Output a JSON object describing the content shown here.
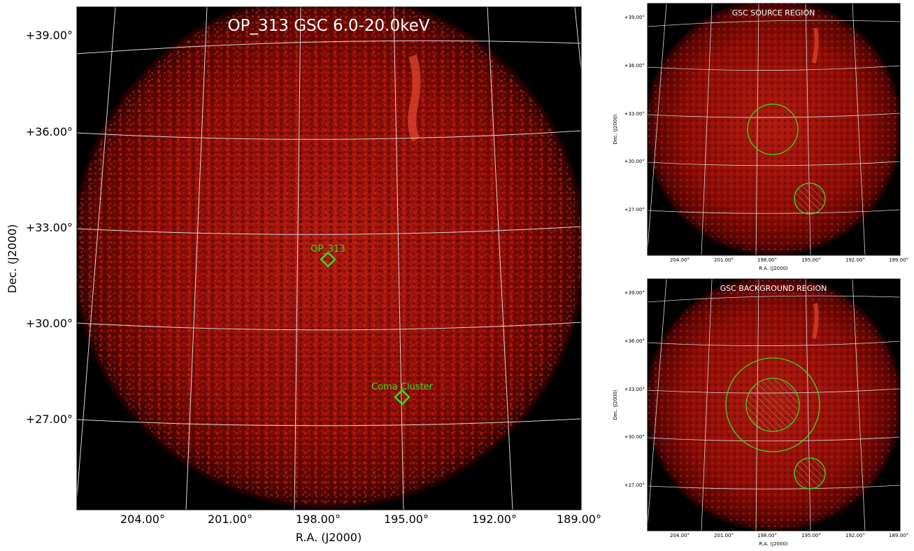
{
  "main_map": {
    "title": "OP_313 GSC 6.0-20.0keV",
    "xlabel": "R.A. (J2000)",
    "ylabel": "Dec. (J2000)",
    "ra_ticks": [
      "204.00°",
      "201.00°",
      "198.00°",
      "195.00°",
      "192.00°",
      "189.00°"
    ],
    "dec_ticks": [
      "+39.00°",
      "+36.00°",
      "+33.00°",
      "+30.00°",
      "+27.00°"
    ],
    "sources": [
      {
        "name": "OP_313"
      },
      {
        "name": "Coma Cluster"
      }
    ]
  },
  "source_panel": {
    "title": "GSC SOURCE REGION",
    "xlabel": "R.A. (J2000)",
    "ylabel": "Dec. (J2000)",
    "ra_ticks": [
      "204.00°",
      "201.00°",
      "198.00°",
      "195.00°",
      "192.00°",
      "189.00°"
    ],
    "dec_ticks": [
      "+39.00°",
      "+36.00°",
      "+33.00°",
      "+30.00°",
      "+27.00°"
    ]
  },
  "background_panel": {
    "title": "GSC BACKGROUND REGION",
    "xlabel": "R.A. (J2000)",
    "ylabel": "Dec. (J2000)",
    "ra_ticks": [
      "204.00°",
      "201.00°",
      "198.00°",
      "195.00°",
      "192.00°",
      "189.00°"
    ],
    "dec_ticks": [
      "+39.00°",
      "+36.00°",
      "+33.00°",
      "+30.00°",
      "+27.00°"
    ]
  },
  "colors": {
    "map_background": "#000000",
    "map_glow": "#a01008",
    "grid": "#d8d8d8",
    "region": "#33dd22",
    "title_text": "#ffffff"
  }
}
